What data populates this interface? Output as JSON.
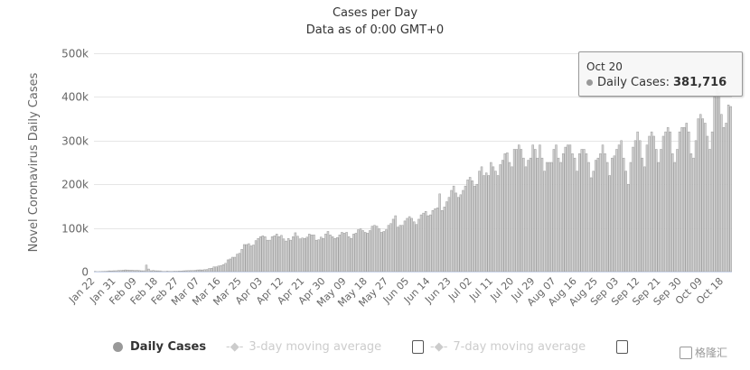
{
  "chart_data": {
    "type": "bar",
    "title": "Cases per Day",
    "subtitle": "Data as of 0:00 GMT+0",
    "ylabel": "Novel Coronavirus Daily Cases",
    "xlabel": "",
    "value_unit": "thousands",
    "ylim": [
      0,
      500
    ],
    "y_ticks": [
      "0",
      "100k",
      "200k",
      "300k",
      "400k",
      "500k"
    ],
    "grid": true,
    "x_start": "Jan 22",
    "x_end": "Oct 21",
    "x_tick_labels": [
      "Jan 22",
      "Jan 31",
      "Feb 09",
      "Feb 18",
      "Feb 27",
      "Mar 07",
      "Mar 16",
      "Mar 25",
      "Apr 03",
      "Apr 12",
      "Apr 21",
      "Apr 30",
      "May 09",
      "May 18",
      "May 27",
      "Jun 05",
      "Jun 14",
      "Jun 23",
      "Jul 02",
      "Jul 11",
      "Jul 20",
      "Jul 29",
      "Aug 07",
      "Aug 16",
      "Aug 25",
      "Sep 03",
      "Sep 12",
      "Sep 21",
      "Sep 30",
      "Oct 09",
      "Oct 18"
    ],
    "x_tick_every_days": 9,
    "series": [
      {
        "name": "Daily Cases",
        "color": "#a0a0a0",
        "values": [
          0.6,
          0.1,
          0.3,
          0.5,
          0.7,
          0.8,
          1.8,
          1.7,
          2,
          2.1,
          2.6,
          2.8,
          3.2,
          3.9,
          3.7,
          3.2,
          3.4,
          2.7,
          3,
          2.5,
          2,
          2,
          15,
          6,
          2.1,
          2.6,
          2,
          1.9,
          1.8,
          0.6,
          0.6,
          1,
          0.6,
          0.6,
          0.9,
          0.9,
          1.2,
          1.4,
          1.9,
          2.2,
          2.4,
          2.5,
          2.6,
          2.9,
          3.9,
          4.1,
          3.9,
          4.5,
          4.9,
          7.2,
          7.7,
          10.9,
          10.9,
          12.9,
          13.8,
          16,
          19,
          27,
          29,
          33,
          33,
          40,
          42,
          51,
          62,
          62,
          64,
          59,
          61,
          71,
          76,
          80,
          82,
          80,
          72,
          72,
          80,
          82,
          86,
          80,
          83,
          75,
          70,
          76,
          72,
          80,
          89,
          81,
          75,
          77,
          76,
          79,
          86,
          84,
          84,
          72,
          73,
          79,
          76,
          86,
          92,
          84,
          80,
          76,
          78,
          84,
          90,
          88,
          90,
          80,
          76,
          86,
          88,
          96,
          98,
          94,
          90,
          88,
          94,
          104,
          106,
          104,
          98,
          90,
          92,
          96,
          106,
          110,
          120,
          128,
          102,
          106,
          106,
          116,
          122,
          126,
          122,
          114,
          108,
          120,
          130,
          134,
          138,
          128,
          130,
          140,
          144,
          146,
          178,
          140,
          148,
          160,
          170,
          186,
          196,
          180,
          170,
          176,
          186,
          196,
          210,
          216,
          208,
          196,
          200,
          230,
          240,
          220,
          226,
          220,
          250,
          240,
          230,
          220,
          245,
          255,
          270,
          272,
          250,
          240,
          280,
          280,
          290,
          280,
          260,
          240,
          255,
          260,
          290,
          280,
          260,
          290,
          260,
          230,
          250,
          250,
          250,
          280,
          290,
          260,
          250,
          270,
          285,
          290,
          290,
          270,
          260,
          230,
          270,
          280,
          280,
          270,
          250,
          215,
          230,
          255,
          260,
          270,
          290,
          270,
          250,
          220,
          260,
          265,
          280,
          290,
          300,
          260,
          230,
          200,
          250,
          285,
          300,
          320,
          300,
          260,
          240,
          290,
          310,
          320,
          310,
          280,
          250,
          280,
          310,
          320,
          330,
          320,
          270,
          250,
          280,
          320,
          330,
          330,
          340,
          320,
          270,
          260,
          300,
          350,
          360,
          350,
          340,
          310,
          280,
          320,
          400,
          420,
          410,
          360,
          330,
          340,
          381.716,
          378
        ]
      }
    ],
    "legend": {
      "placement": "bottom",
      "items": [
        {
          "label": "Daily Cases",
          "active": true
        },
        {
          "label": "3-day moving average",
          "active": false,
          "checked": false
        },
        {
          "label": "7-day moving average",
          "active": false,
          "checked": false
        }
      ]
    },
    "tooltip": {
      "date": "Oct 20",
      "series": "Daily Cases:",
      "value": "381,716"
    }
  },
  "watermark": "格隆汇"
}
